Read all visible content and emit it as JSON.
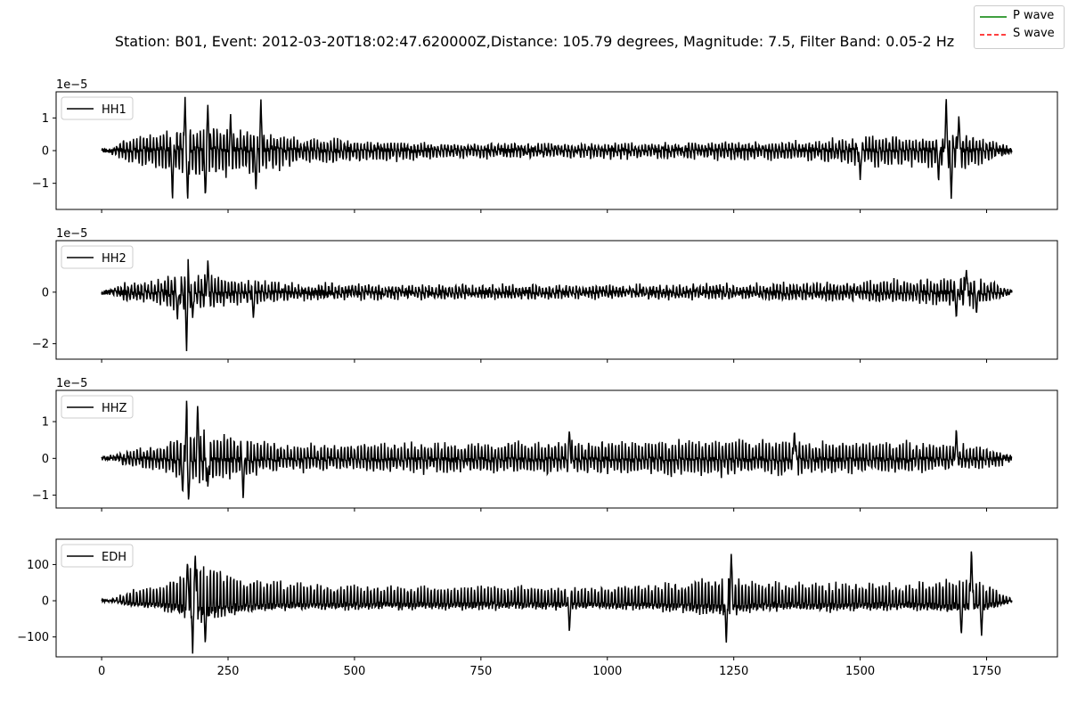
{
  "chart_data": {
    "type": "line",
    "title": "Station: B01, Event: 2012-03-20T18:02:47.620000Z,Distance: 105.79 degrees, Magnitude: 7.5, Filter Band: 0.05-2 Hz",
    "legend_placement": "top-right",
    "figure_legend": [
      {
        "name": "P wave",
        "color": "#008000",
        "style": "solid"
      },
      {
        "name": "S wave",
        "color": "#ff0000",
        "style": "dashed"
      }
    ],
    "xlim": [
      -90,
      1890
    ],
    "x_ticks": [
      0,
      250,
      500,
      750,
      1000,
      1250,
      1500,
      1750
    ],
    "x_tick_labels": [
      "0",
      "250",
      "500",
      "750",
      "1000",
      "1250",
      "1500",
      "1750"
    ],
    "x_range": [
      0,
      1800
    ],
    "grid": false,
    "panels": [
      {
        "name": "HH1",
        "scale_label": "1e−5",
        "ylim": [
          -1.8,
          1.8
        ],
        "y_ticks": [
          1,
          0,
          -1
        ],
        "y_tick_labels": [
          "1",
          "0",
          "−1"
        ],
        "line_color": "#000000",
        "legend_placement": "upper-left",
        "noise_level": 0.25,
        "envelope": [
          [
            0,
            0
          ],
          [
            20,
            0.08
          ],
          [
            50,
            0.45
          ],
          [
            100,
            0.6
          ],
          [
            150,
            0.9
          ],
          [
            200,
            0.95
          ],
          [
            260,
            0.9
          ],
          [
            320,
            0.75
          ],
          [
            400,
            0.5
          ],
          [
            600,
            0.32
          ],
          [
            800,
            0.25
          ],
          [
            1000,
            0.25
          ],
          [
            1200,
            0.32
          ],
          [
            1400,
            0.35
          ],
          [
            1500,
            0.55
          ],
          [
            1600,
            0.55
          ],
          [
            1700,
            0.7
          ],
          [
            1760,
            0.4
          ],
          [
            1800,
            0.05
          ]
        ],
        "spikes": [
          [
            165,
            1.62
          ],
          [
            170,
            -1.6
          ],
          [
            140,
            -1.45
          ],
          [
            205,
            -1.45
          ],
          [
            210,
            1.4
          ],
          [
            305,
            -1.2
          ],
          [
            315,
            1.5
          ],
          [
            255,
            1.0
          ],
          [
            1500,
            -0.9
          ],
          [
            1670,
            1.6
          ],
          [
            1680,
            -1.45
          ],
          [
            1695,
            1.1
          ],
          [
            1655,
            -0.9
          ]
        ]
      },
      {
        "name": "HH2",
        "scale_label": "1e−5",
        "ylim": [
          -2.6,
          2.0
        ],
        "y_ticks": [
          0,
          -2
        ],
        "y_tick_labels": [
          "0",
          "−2"
        ],
        "line_color": "#000000",
        "legend_placement": "upper-left",
        "noise_level": 0.35,
        "envelope": [
          [
            0,
            0
          ],
          [
            20,
            0.08
          ],
          [
            50,
            0.45
          ],
          [
            100,
            0.55
          ],
          [
            160,
            0.9
          ],
          [
            200,
            0.85
          ],
          [
            260,
            0.65
          ],
          [
            350,
            0.45
          ],
          [
            500,
            0.35
          ],
          [
            800,
            0.3
          ],
          [
            1000,
            0.3
          ],
          [
            1300,
            0.35
          ],
          [
            1500,
            0.45
          ],
          [
            1650,
            0.6
          ],
          [
            1720,
            0.75
          ],
          [
            1770,
            0.35
          ],
          [
            1800,
            0.05
          ]
        ],
        "spikes": [
          [
            170,
            1.75
          ],
          [
            168,
            -2.4
          ],
          [
            150,
            -1.0
          ],
          [
            180,
            -1.0
          ],
          [
            210,
            1.2
          ],
          [
            300,
            -1.0
          ],
          [
            1710,
            0.95
          ],
          [
            1690,
            -0.95
          ],
          [
            1730,
            -0.8
          ]
        ]
      },
      {
        "name": "HHZ",
        "scale_label": "1e−5",
        "ylim": [
          -1.35,
          1.85
        ],
        "y_ticks": [
          1,
          0,
          -1
        ],
        "y_tick_labels": [
          "1",
          "0",
          "−1"
        ],
        "line_color": "#000000",
        "legend_placement": "upper-left",
        "noise_level": 0.2,
        "envelope": [
          [
            0,
            0
          ],
          [
            20,
            0.08
          ],
          [
            60,
            0.3
          ],
          [
            120,
            0.45
          ],
          [
            170,
            0.95
          ],
          [
            210,
            0.85
          ],
          [
            260,
            0.7
          ],
          [
            320,
            0.55
          ],
          [
            400,
            0.45
          ],
          [
            600,
            0.5
          ],
          [
            800,
            0.5
          ],
          [
            1000,
            0.55
          ],
          [
            1200,
            0.6
          ],
          [
            1400,
            0.55
          ],
          [
            1600,
            0.5
          ],
          [
            1700,
            0.45
          ],
          [
            1770,
            0.3
          ],
          [
            1800,
            0.05
          ]
        ],
        "spikes": [
          [
            168,
            1.65
          ],
          [
            172,
            -1.2
          ],
          [
            190,
            1.45
          ],
          [
            160,
            -0.9
          ],
          [
            210,
            -0.8
          ],
          [
            280,
            -1.1
          ],
          [
            925,
            0.8
          ],
          [
            1370,
            0.8
          ],
          [
            1690,
            0.8
          ]
        ]
      },
      {
        "name": "EDH",
        "scale_label": "",
        "ylim": [
          -155,
          170
        ],
        "y_ticks": [
          100,
          0,
          -100
        ],
        "y_tick_labels": [
          "100",
          "0",
          "−100"
        ],
        "line_color": "#000000",
        "legend_placement": "upper-left",
        "noise_level": 10,
        "envelope": [
          [
            0,
            0
          ],
          [
            20,
            5
          ],
          [
            60,
            35
          ],
          [
            120,
            45
          ],
          [
            170,
            105
          ],
          [
            200,
            110
          ],
          [
            260,
            80
          ],
          [
            320,
            60
          ],
          [
            400,
            50
          ],
          [
            600,
            45
          ],
          [
            800,
            45
          ],
          [
            1000,
            45
          ],
          [
            1150,
            55
          ],
          [
            1240,
            80
          ],
          [
            1300,
            55
          ],
          [
            1400,
            55
          ],
          [
            1500,
            55
          ],
          [
            1600,
            50
          ],
          [
            1700,
            70
          ],
          [
            1760,
            45
          ],
          [
            1800,
            5
          ]
        ],
        "spikes": [
          [
            185,
            140
          ],
          [
            180,
            -140
          ],
          [
            170,
            110
          ],
          [
            205,
            -120
          ],
          [
            1245,
            135
          ],
          [
            1235,
            -120
          ],
          [
            1720,
            150
          ],
          [
            1700,
            -95
          ],
          [
            1740,
            -95
          ],
          [
            925,
            -85
          ]
        ]
      }
    ]
  }
}
